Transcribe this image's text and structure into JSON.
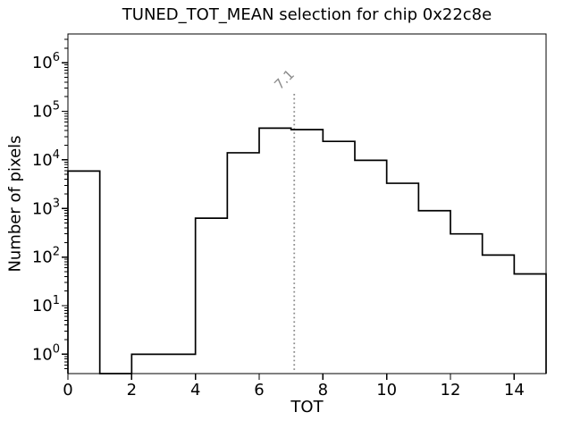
{
  "chart_data": {
    "type": "bar",
    "subtype": "step-histogram",
    "title": "TUNED_TOT_MEAN selection for chip 0x22c8e",
    "xlabel": "TOT",
    "ylabel": "Number of pixels",
    "yscale": "log",
    "xlim": [
      0,
      15
    ],
    "ylim": [
      0.4,
      3900000
    ],
    "grid": false,
    "legend": null,
    "bin_edges": [
      0,
      1,
      2,
      3,
      4,
      5,
      6,
      7,
      8,
      9,
      10,
      11,
      12,
      13,
      14,
      15
    ],
    "counts": [
      5900,
      0,
      1,
      1,
      630,
      14000,
      45000,
      42000,
      24000,
      9800,
      3300,
      900,
      300,
      110,
      45
    ],
    "xticks": [
      0,
      2,
      4,
      6,
      8,
      10,
      12,
      14
    ],
    "ytick_exponents": [
      0,
      1,
      2,
      3,
      4,
      5,
      6
    ],
    "line_color": "#000000",
    "annotation": {
      "label": "7.1",
      "x": 7.1,
      "color": "#8c8c8c",
      "line_style": "dotted"
    }
  }
}
